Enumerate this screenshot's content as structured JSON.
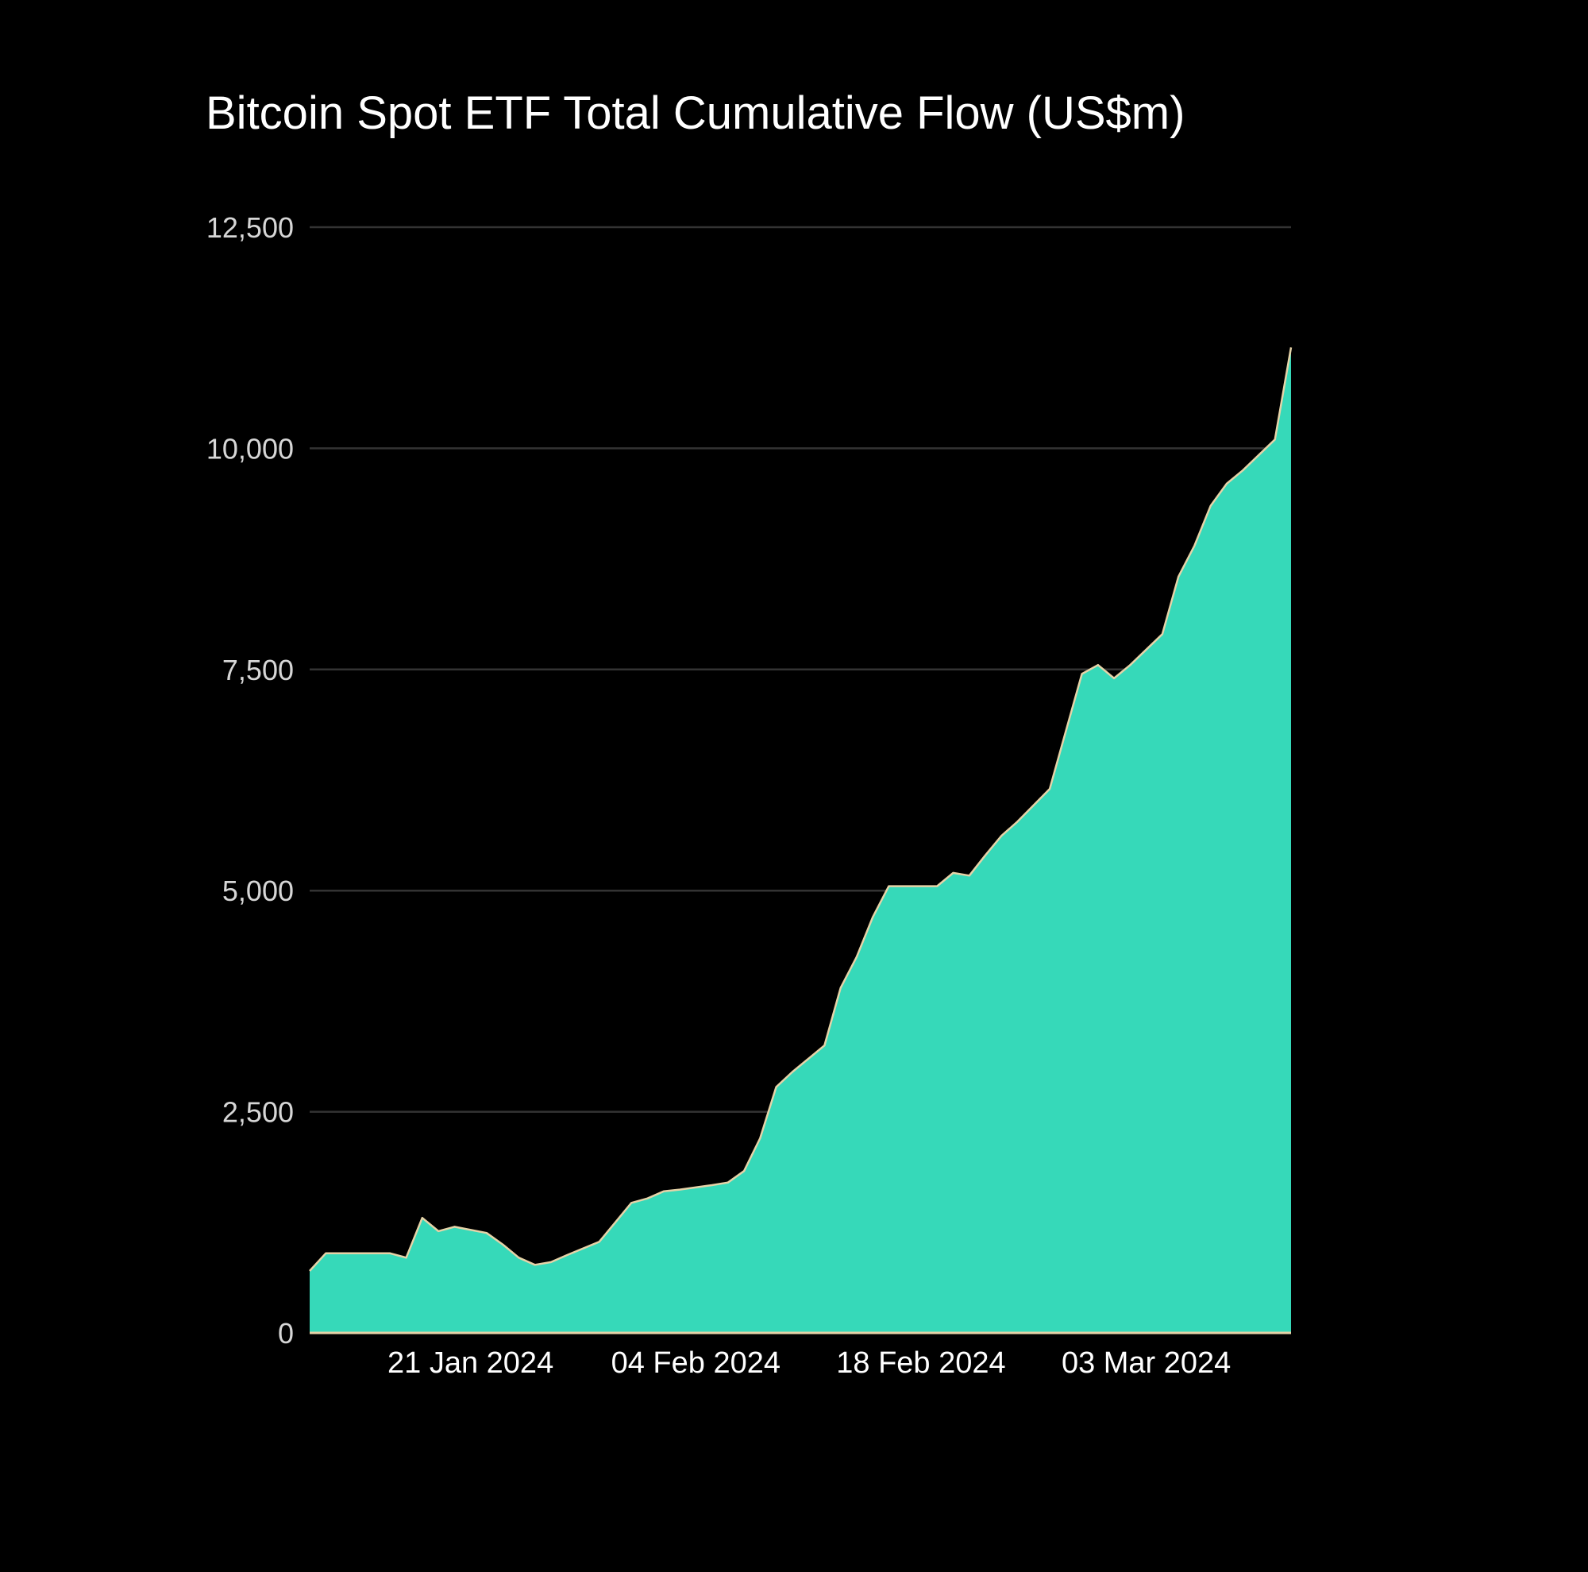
{
  "chart_data": {
    "type": "area",
    "title": "Bitcoin Spot ETF Total Cumulative Flow (US$m)",
    "xlabel": "",
    "ylabel": "",
    "ylim": [
      0,
      12500
    ],
    "xlim": [
      "2024-01-11",
      "2024-03-12"
    ],
    "y_ticks": [
      0,
      2500,
      5000,
      7500,
      10000,
      12500
    ],
    "y_tick_labels": [
      "0",
      "2,500",
      "5,000",
      "7,500",
      "10,000",
      "12,500"
    ],
    "x_ticks": [
      "2024-01-21",
      "2024-02-04",
      "2024-02-18",
      "2024-03-03"
    ],
    "x_tick_labels": [
      "21 Jan 2024",
      "04 Feb 2024",
      "18 Feb 2024",
      "03 Mar 2024"
    ],
    "grid": true,
    "legend": "none",
    "colors": {
      "fill": "#36d9b9",
      "outline": "#e6d3a8",
      "grid": "#333333",
      "background": "#000000"
    },
    "series": [
      {
        "x": [
          "2024-01-11",
          "2024-01-12",
          "2024-01-16",
          "2024-01-17",
          "2024-01-18",
          "2024-01-19",
          "2024-01-20",
          "2024-01-22",
          "2024-01-23",
          "2024-01-24",
          "2024-01-25",
          "2024-01-26",
          "2024-01-27",
          "2024-01-29",
          "2024-01-30",
          "2024-01-31",
          "2024-02-01",
          "2024-02-02",
          "2024-02-03",
          "2024-02-05",
          "2024-02-06",
          "2024-02-07",
          "2024-02-08",
          "2024-02-09",
          "2024-02-10",
          "2024-02-12",
          "2024-02-13",
          "2024-02-14",
          "2024-02-15",
          "2024-02-16",
          "2024-02-17",
          "2024-02-19",
          "2024-02-20",
          "2024-02-21",
          "2024-02-22",
          "2024-02-23",
          "2024-02-24",
          "2024-02-26",
          "2024-02-27",
          "2024-02-28",
          "2024-02-29",
          "2024-03-01",
          "2024-03-02",
          "2024-03-04",
          "2024-03-05",
          "2024-03-06",
          "2024-03-07",
          "2024-03-08",
          "2024-03-09",
          "2024-03-11",
          "2024-03-12"
        ],
        "values": [
          700,
          900,
          900,
          850,
          1300,
          1150,
          1200,
          1130,
          1000,
          850,
          770,
          800,
          880,
          1030,
          1250,
          1470,
          1520,
          1600,
          1620,
          1670,
          1700,
          1830,
          2200,
          2780,
          2950,
          3250,
          3900,
          4250,
          4700,
          5050,
          5050,
          5050,
          5200,
          5170,
          5400,
          5620,
          5780,
          6150,
          6800,
          7450,
          7550,
          7400,
          7550,
          7900,
          8550,
          8900,
          9350,
          9600,
          9750,
          10100,
          11140
        ]
      }
    ]
  }
}
